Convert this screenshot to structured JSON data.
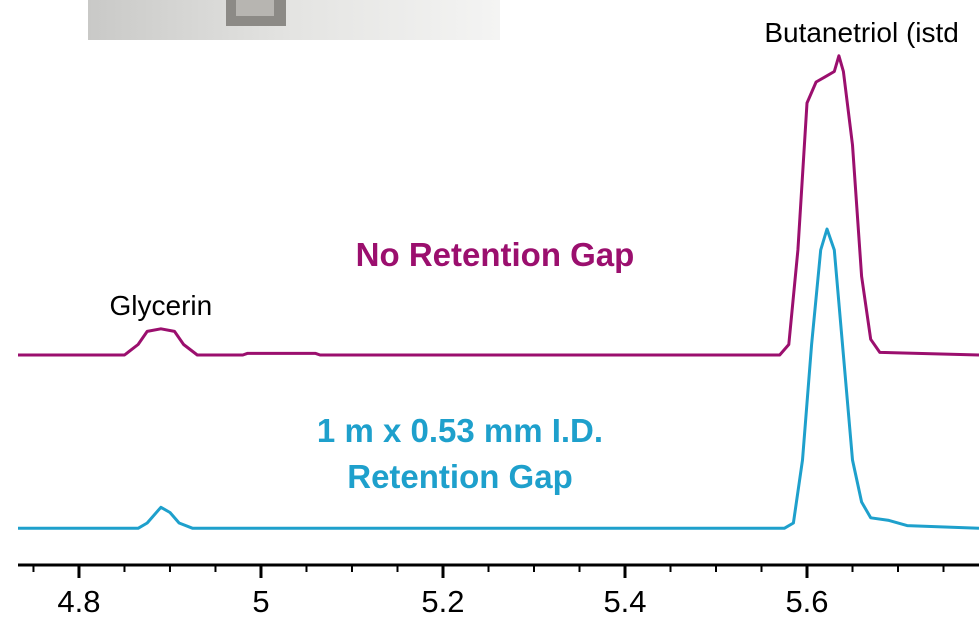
{
  "chart_data": {
    "type": "line",
    "annotations": [
      {
        "text": "Glycerin",
        "x": 4.89,
        "y": 49
      },
      {
        "text": "Butanetriol (istd",
        "x": 5.66,
        "y": 101
      }
    ],
    "series": [
      {
        "name": "No Retention Gap",
        "color": "#9b0f6e",
        "x": [
          4.733,
          4.85,
          4.865,
          4.875,
          4.89,
          4.905,
          4.915,
          4.93,
          4.98,
          4.985,
          5.06,
          5.065,
          5.57,
          5.58,
          5.59,
          5.6,
          5.61,
          5.62,
          5.63,
          5.635,
          5.64,
          5.65,
          5.66,
          5.67,
          5.68,
          5.789
        ],
        "values": [
          40,
          40,
          42,
          44.5,
          45,
          44.5,
          42,
          40,
          40,
          40.3,
          40.3,
          40,
          40,
          42,
          60,
          88,
          92,
          93,
          94,
          97,
          94,
          80,
          55,
          43,
          40.5,
          40
        ]
      },
      {
        "name": "1 m x 0.53 mm I.D. Retention Gap",
        "color": "#1ea0cc",
        "x": [
          4.733,
          4.865,
          4.875,
          4.89,
          4.9,
          4.91,
          4.925,
          5.575,
          5.585,
          5.595,
          5.605,
          5.615,
          5.622,
          5.63,
          5.64,
          5.65,
          5.66,
          5.67,
          5.69,
          5.71,
          5.789
        ],
        "values": [
          7,
          7,
          8,
          11,
          10,
          8,
          7,
          7,
          8,
          20,
          42,
          60,
          64,
          60,
          40,
          20,
          12,
          9,
          8.5,
          7.5,
          7
        ]
      }
    ],
    "xlim": [
      4.733,
      5.789
    ],
    "ylim": [
      0,
      100
    ],
    "xticks": [
      4.8,
      5,
      5.2,
      5.4,
      5.6
    ],
    "minor_xticks": [
      4.75,
      4.85,
      4.9,
      4.95,
      5.05,
      5.1,
      5.15,
      5.25,
      5.3,
      5.35,
      5.45,
      5.5,
      5.55,
      5.65,
      5.7,
      5.75
    ],
    "grid": false
  }
}
